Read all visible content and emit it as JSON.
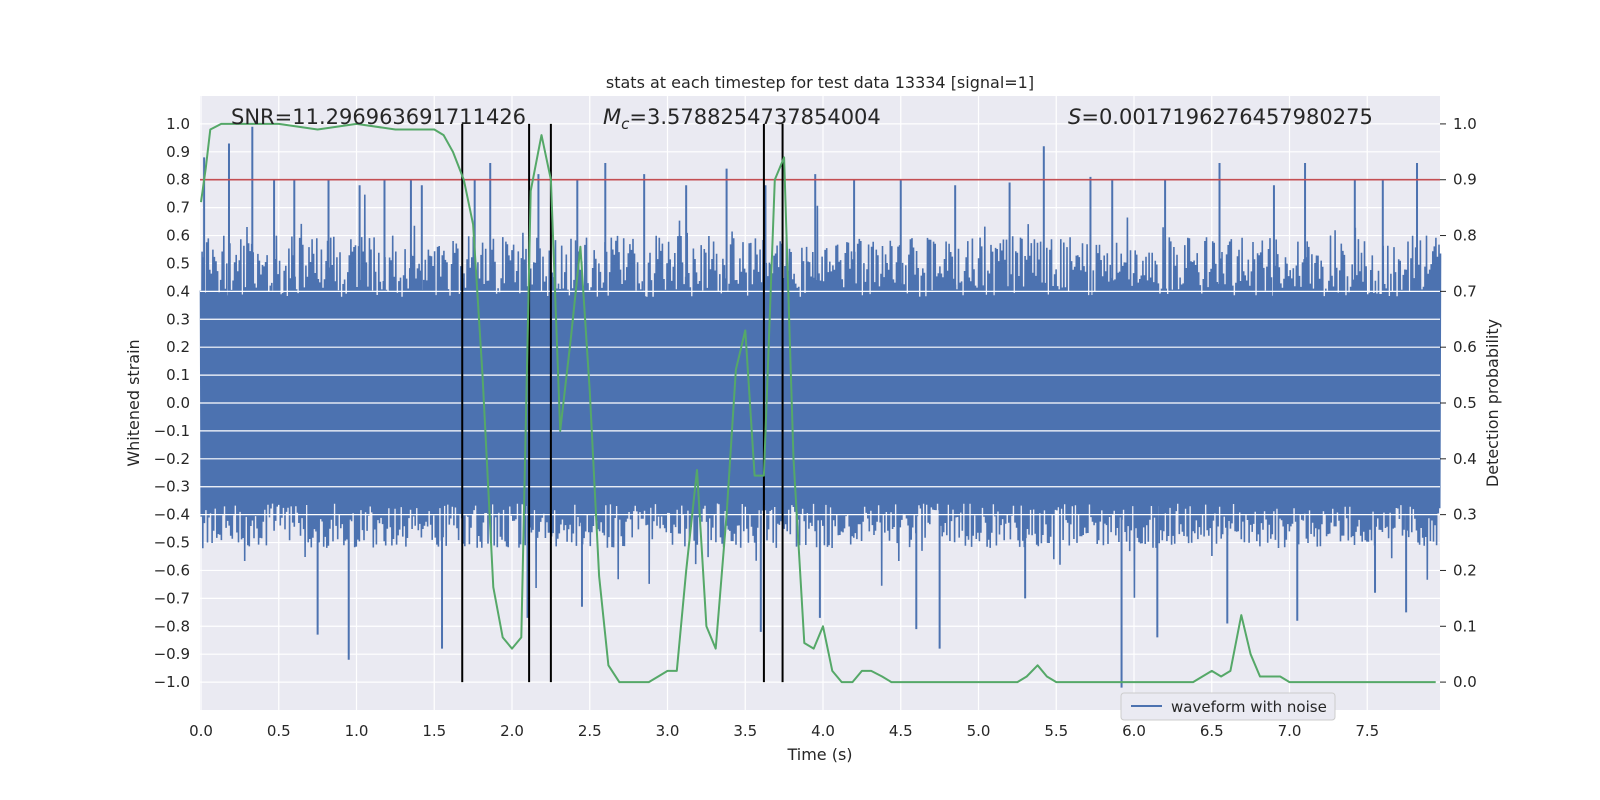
{
  "chart_data": {
    "type": "line",
    "title": "stats at each timestep for test data 13334 [signal=1]",
    "xlabel": "Time (s)",
    "ylabel_left": "Whitened strain",
    "ylabel_right": "Detection probability",
    "xlim": [
      0.0,
      8.0
    ],
    "ylim_left": [
      -1.1,
      1.1
    ],
    "ylim_right": [
      -0.05,
      1.05
    ],
    "x_ticks": [
      "0.0",
      "0.5",
      "1.0",
      "1.5",
      "2.0",
      "2.5",
      "3.0",
      "3.5",
      "4.0",
      "4.5",
      "5.0",
      "5.5",
      "6.0",
      "6.5",
      "7.0",
      "7.5"
    ],
    "y_ticks_left": [
      "1.0",
      "0.9",
      "0.8",
      "0.7",
      "0.6",
      "0.5",
      "0.4",
      "0.3",
      "0.2",
      "0.1",
      "0.0",
      "−0.1",
      "−0.2",
      "−0.3",
      "−0.4",
      "−0.5",
      "−0.6",
      "−0.7",
      "−0.8",
      "−0.9",
      "−1.0"
    ],
    "y_ticks_right": [
      "1.0",
      "0.9",
      "0.8",
      "0.7",
      "0.6",
      "0.5",
      "0.4",
      "0.3",
      "0.2",
      "0.1",
      "0.0"
    ],
    "annotations": {
      "snr": "SNR=11.296963691711426",
      "mc_symbol": "M",
      "mc_sub": "c",
      "mc_value": "=3.5788254737854004",
      "s_symbol": "S",
      "s_value": "=0.0017196276457980275"
    },
    "legend": {
      "position": "lower-right",
      "entries": [
        "waveform with noise"
      ]
    },
    "grid": true,
    "threshold": {
      "axis": "right",
      "value": 0.9,
      "color": "#c44e52"
    },
    "vertical_lines": [
      1.68,
      2.11,
      2.25,
      3.62,
      3.74
    ],
    "series": [
      {
        "name": "waveform with noise",
        "axis": "left",
        "color": "#4c72b0",
        "envelope": "dense noise, roughly within ±0.45 with spikes reaching about ±0.95; see peaks",
        "peaks_up": [
          [
            0.02,
            0.88
          ],
          [
            0.18,
            0.93
          ],
          [
            0.33,
            0.99
          ],
          [
            0.47,
            0.8
          ],
          [
            0.6,
            0.8
          ],
          [
            0.82,
            0.8
          ],
          [
            1.02,
            0.78
          ],
          [
            1.18,
            0.8
          ],
          [
            1.35,
            0.8
          ],
          [
            1.42,
            0.78
          ],
          [
            1.76,
            0.8
          ],
          [
            1.86,
            0.86
          ],
          [
            2.17,
            0.82
          ],
          [
            2.42,
            0.8
          ],
          [
            2.6,
            0.86
          ],
          [
            2.85,
            0.82
          ],
          [
            3.12,
            0.78
          ],
          [
            3.38,
            0.84
          ],
          [
            3.63,
            0.78
          ],
          [
            3.95,
            0.82
          ],
          [
            4.2,
            0.8
          ],
          [
            4.5,
            0.8
          ],
          [
            4.85,
            0.78
          ],
          [
            5.2,
            0.79
          ],
          [
            5.42,
            0.92
          ],
          [
            5.72,
            0.81
          ],
          [
            5.86,
            0.8
          ],
          [
            6.2,
            0.8
          ],
          [
            6.55,
            0.86
          ],
          [
            6.9,
            0.78
          ],
          [
            7.1,
            0.86
          ],
          [
            7.42,
            0.8
          ],
          [
            7.6,
            0.8
          ],
          [
            7.82,
            0.86
          ]
        ],
        "peaks_down": [
          [
            0.95,
            -0.92
          ],
          [
            0.75,
            -0.83
          ],
          [
            1.55,
            -0.88
          ],
          [
            2.1,
            -0.77
          ],
          [
            2.45,
            -0.73
          ],
          [
            3.6,
            -0.82
          ],
          [
            3.98,
            -0.77
          ],
          [
            4.6,
            -0.81
          ],
          [
            4.75,
            -0.88
          ],
          [
            5.3,
            -0.7
          ],
          [
            5.92,
            -1.02
          ],
          [
            6.15,
            -0.84
          ],
          [
            6.6,
            -0.79
          ],
          [
            7.05,
            -0.78
          ],
          [
            7.55,
            -0.68
          ],
          [
            7.75,
            -0.75
          ]
        ]
      },
      {
        "name": "",
        "axis": "right",
        "color": "#55a868",
        "x": [
          0.0,
          0.03,
          0.06,
          0.13,
          0.25,
          0.5,
          0.75,
          1.0,
          1.25,
          1.5,
          1.56,
          1.62,
          1.69,
          1.75,
          1.81,
          1.88,
          1.94,
          2.0,
          2.06,
          2.12,
          2.19,
          2.25,
          2.31,
          2.38,
          2.44,
          2.5,
          2.56,
          2.62,
          2.69,
          2.75,
          2.81,
          2.88,
          2.94,
          3.0,
          3.06,
          3.12,
          3.19,
          3.25,
          3.31,
          3.38,
          3.44,
          3.5,
          3.56,
          3.62,
          3.69,
          3.75,
          3.81,
          3.88,
          3.94,
          4.0,
          4.06,
          4.12,
          4.19,
          4.25,
          4.31,
          4.38,
          4.44,
          4.5,
          4.62,
          4.75,
          4.81,
          4.88,
          5.0,
          5.06,
          5.12,
          5.25,
          5.31,
          5.38,
          5.44,
          5.5,
          5.62,
          5.75,
          5.88,
          6.0,
          6.12,
          6.25,
          6.38,
          6.44,
          6.5,
          6.56,
          6.62,
          6.69,
          6.75,
          6.81,
          6.88,
          6.94,
          7.0,
          7.06,
          7.12,
          7.25,
          7.5,
          7.75,
          7.94
        ],
        "y": [
          0.86,
          0.92,
          0.99,
          1.0,
          1.0,
          1.0,
          0.99,
          1.0,
          0.99,
          0.99,
          0.98,
          0.95,
          0.9,
          0.82,
          0.55,
          0.17,
          0.08,
          0.06,
          0.08,
          0.88,
          0.98,
          0.9,
          0.45,
          0.62,
          0.78,
          0.52,
          0.19,
          0.03,
          0.0,
          0.0,
          0.0,
          0.0,
          0.01,
          0.02,
          0.02,
          0.2,
          0.38,
          0.1,
          0.06,
          0.3,
          0.56,
          0.63,
          0.37,
          0.37,
          0.9,
          0.94,
          0.4,
          0.07,
          0.06,
          0.1,
          0.02,
          0.0,
          0.0,
          0.02,
          0.02,
          0.01,
          0.0,
          0.0,
          0.0,
          0.0,
          0.0,
          0.0,
          0.0,
          0.0,
          0.0,
          0.0,
          0.01,
          0.03,
          0.01,
          0.0,
          0.0,
          0.0,
          0.0,
          0.0,
          0.0,
          0.0,
          0.0,
          0.01,
          0.02,
          0.01,
          0.02,
          0.12,
          0.05,
          0.01,
          0.01,
          0.01,
          0.0,
          0.0,
          0.0,
          0.0,
          0.0,
          0.0,
          0.0
        ]
      }
    ]
  }
}
